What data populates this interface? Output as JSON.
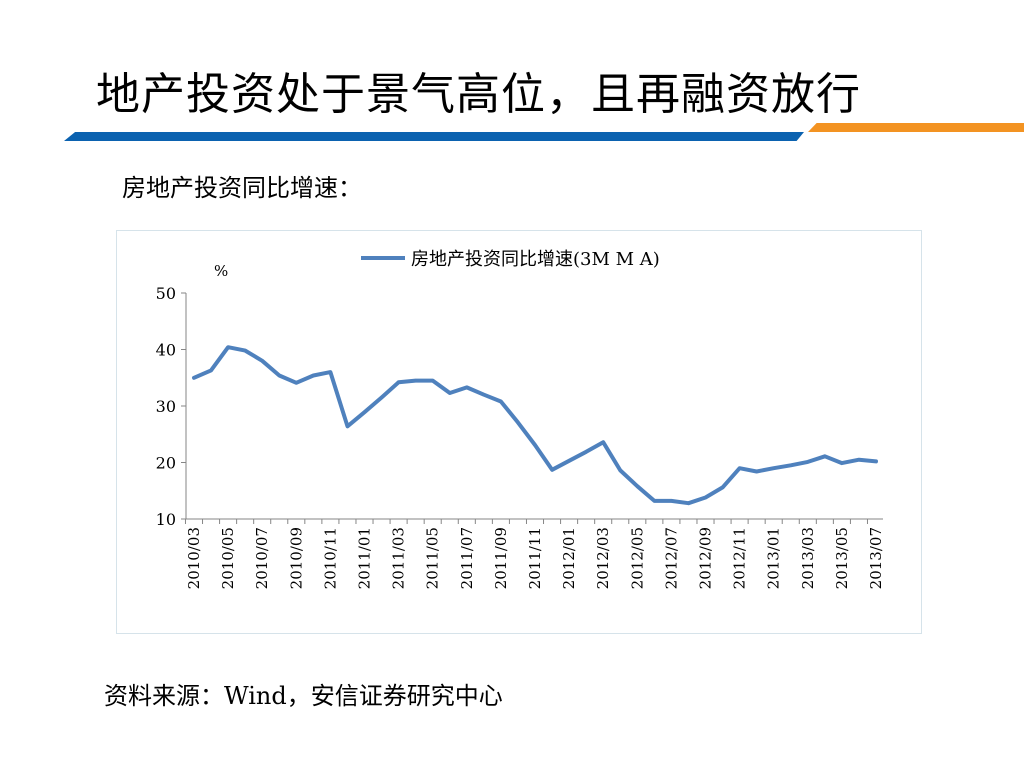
{
  "slide": {
    "title": "地产投资处于景气高位，且再融资放行",
    "subtitle": "房地产投资同比增速：",
    "source": "资料来源：Wind，安信证券研究中心"
  },
  "colors": {
    "series": "#4f81bd",
    "stripe_blue": "#0b62b0",
    "stripe_orange": "#f39322"
  },
  "chart_data": {
    "type": "line",
    "unit_label": "%",
    "ylim": [
      10,
      50
    ],
    "yticks": [
      10,
      20,
      30,
      40,
      50
    ],
    "grid": false,
    "legend_position": "top",
    "x_labels": [
      "2010/03",
      "2010/05",
      "2010/07",
      "2010/09",
      "2010/11",
      "2011/01",
      "2011/03",
      "2011/05",
      "2011/07",
      "2011/09",
      "2011/11",
      "2012/01",
      "2012/03",
      "2012/05",
      "2012/07",
      "2012/09",
      "2012/11",
      "2013/01",
      "2013/03",
      "2013/05",
      "2013/07"
    ],
    "series": [
      {
        "name": "房地产投资同比增速(3M M A)",
        "x": [
          "2010/03",
          "2010/04",
          "2010/05",
          "2010/06",
          "2010/07",
          "2010/08",
          "2010/09",
          "2010/10",
          "2010/11",
          "2010/12",
          "2011/01",
          "2011/02",
          "2011/03",
          "2011/04",
          "2011/05",
          "2011/06",
          "2011/07",
          "2011/08",
          "2011/09",
          "2011/10",
          "2011/11",
          "2011/12",
          "2012/01",
          "2012/02",
          "2012/03",
          "2012/04",
          "2012/05",
          "2012/06",
          "2012/07",
          "2012/08",
          "2012/09",
          "2012/10",
          "2012/11",
          "2012/12",
          "2013/01",
          "2013/02",
          "2013/03",
          "2013/04",
          "2013/05",
          "2013/06",
          "2013/07"
        ],
        "values": [
          35.0,
          36.3,
          40.4,
          39.8,
          38.0,
          35.4,
          34.1,
          35.4,
          36.0,
          26.4,
          28.9,
          31.5,
          34.2,
          34.5,
          34.5,
          32.3,
          33.3,
          32.0,
          30.8,
          27.1,
          23.1,
          18.7,
          20.3,
          21.9,
          23.6,
          18.6,
          15.8,
          13.2,
          13.2,
          12.8,
          13.8,
          15.6,
          19.0,
          18.4,
          19.0,
          19.5,
          20.1,
          21.1,
          19.9,
          20.5,
          20.2
        ]
      }
    ]
  }
}
